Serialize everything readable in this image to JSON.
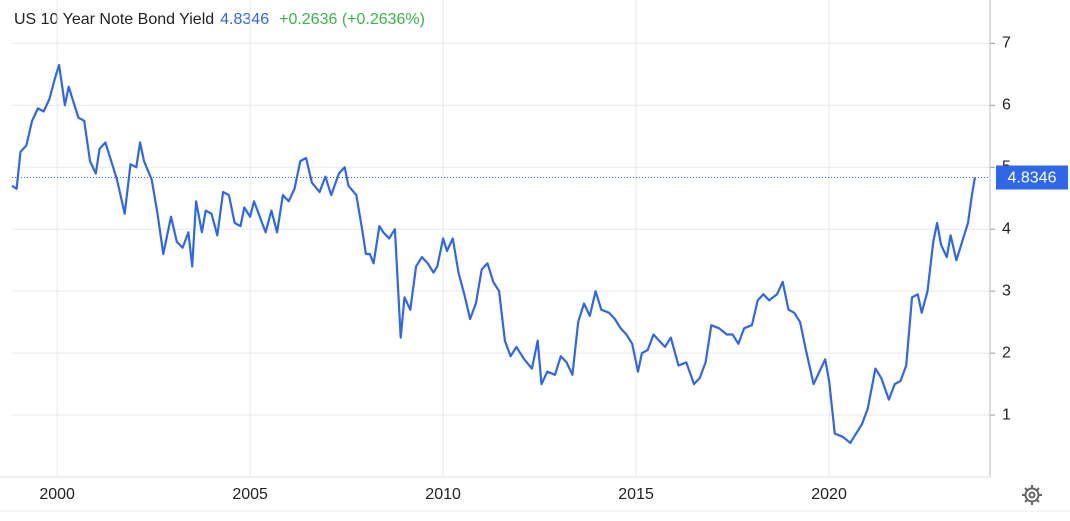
{
  "chart_data": {
    "type": "line",
    "title": "US 10 Year Note Bond Yield",
    "current_value": 4.8346,
    "change_label": "+0.2636 (+0.2636%)",
    "grid": true,
    "xlim": [
      1998.83,
      2024.17
    ],
    "ylim": [
      0,
      7.7
    ],
    "xticks": [
      2000,
      2005,
      2010,
      2015,
      2020
    ],
    "yticks": [
      1,
      2,
      3,
      4,
      5,
      6,
      7
    ],
    "x": [
      1998.83,
      1998.95,
      1999.05,
      1999.2,
      1999.35,
      1999.5,
      1999.65,
      1999.8,
      1999.95,
      2000.05,
      2000.2,
      2000.3,
      2000.45,
      2000.55,
      2000.7,
      2000.85,
      2001.0,
      2001.1,
      2001.25,
      2001.4,
      2001.55,
      2001.75,
      2001.9,
      2002.05,
      2002.15,
      2002.25,
      2002.45,
      2002.6,
      2002.75,
      2002.95,
      2003.1,
      2003.25,
      2003.4,
      2003.5,
      2003.6,
      2003.75,
      2003.85,
      2004.0,
      2004.15,
      2004.3,
      2004.45,
      2004.6,
      2004.75,
      2004.85,
      2005.0,
      2005.1,
      2005.25,
      2005.4,
      2005.55,
      2005.7,
      2005.85,
      2006.0,
      2006.15,
      2006.3,
      2006.45,
      2006.6,
      2006.8,
      2006.95,
      2007.1,
      2007.3,
      2007.45,
      2007.55,
      2007.75,
      2007.9,
      2008.0,
      2008.1,
      2008.2,
      2008.35,
      2008.45,
      2008.6,
      2008.75,
      2008.9,
      2009.0,
      2009.15,
      2009.3,
      2009.45,
      2009.6,
      2009.75,
      2009.85,
      2010.0,
      2010.1,
      2010.25,
      2010.4,
      2010.55,
      2010.7,
      2010.85,
      2011.0,
      2011.15,
      2011.3,
      2011.45,
      2011.6,
      2011.75,
      2011.9,
      2012.1,
      2012.3,
      2012.45,
      2012.55,
      2012.7,
      2012.9,
      2013.05,
      2013.2,
      2013.35,
      2013.5,
      2013.65,
      2013.8,
      2013.95,
      2014.1,
      2014.3,
      2014.45,
      2014.6,
      2014.75,
      2014.9,
      2015.05,
      2015.15,
      2015.3,
      2015.45,
      2015.6,
      2015.75,
      2015.9,
      2016.1,
      2016.3,
      2016.5,
      2016.65,
      2016.8,
      2016.95,
      2017.15,
      2017.35,
      2017.5,
      2017.65,
      2017.8,
      2018.0,
      2018.15,
      2018.3,
      2018.45,
      2018.65,
      2018.8,
      2018.95,
      2019.1,
      2019.25,
      2019.4,
      2019.6,
      2019.75,
      2019.9,
      2020.0,
      2020.15,
      2020.35,
      2020.55,
      2020.7,
      2020.85,
      2021.0,
      2021.2,
      2021.35,
      2021.55,
      2021.7,
      2021.85,
      2022.0,
      2022.15,
      2022.3,
      2022.4,
      2022.55,
      2022.7,
      2022.8,
      2022.9,
      2023.05,
      2023.15,
      2023.3,
      2023.45,
      2023.6,
      2023.7,
      2023.78
    ],
    "series": [
      {
        "name": "US 10 Year Note Bond Yield",
        "color": "#2f67e6",
        "values": [
          4.7,
          4.65,
          5.25,
          5.35,
          5.75,
          5.95,
          5.9,
          6.1,
          6.45,
          6.65,
          6.0,
          6.3,
          6.0,
          5.8,
          5.75,
          5.1,
          4.9,
          5.3,
          5.4,
          5.1,
          4.8,
          4.25,
          5.05,
          5.0,
          5.4,
          5.1,
          4.8,
          4.25,
          3.6,
          4.2,
          3.8,
          3.7,
          3.95,
          3.4,
          4.45,
          3.95,
          4.3,
          4.25,
          3.9,
          4.6,
          4.55,
          4.1,
          4.05,
          4.35,
          4.2,
          4.45,
          4.2,
          3.95,
          4.3,
          3.95,
          4.55,
          4.45,
          4.65,
          5.1,
          5.15,
          4.75,
          4.6,
          4.85,
          4.55,
          4.9,
          5.0,
          4.7,
          4.55,
          4.0,
          3.6,
          3.6,
          3.45,
          4.05,
          3.95,
          3.85,
          4.0,
          2.25,
          2.9,
          2.7,
          3.4,
          3.55,
          3.45,
          3.3,
          3.4,
          3.85,
          3.65,
          3.85,
          3.3,
          2.95,
          2.55,
          2.8,
          3.35,
          3.45,
          3.15,
          3.0,
          2.2,
          1.95,
          2.1,
          1.9,
          1.75,
          2.2,
          1.5,
          1.7,
          1.65,
          1.95,
          1.85,
          1.65,
          2.5,
          2.8,
          2.6,
          3.0,
          2.7,
          2.65,
          2.55,
          2.4,
          2.3,
          2.15,
          1.7,
          2.0,
          2.05,
          2.3,
          2.2,
          2.1,
          2.25,
          1.8,
          1.85,
          1.5,
          1.6,
          1.85,
          2.45,
          2.4,
          2.3,
          2.3,
          2.15,
          2.4,
          2.45,
          2.85,
          2.95,
          2.85,
          2.95,
          3.15,
          2.7,
          2.65,
          2.5,
          2.05,
          1.5,
          1.7,
          1.9,
          1.55,
          0.7,
          0.65,
          0.55,
          0.7,
          0.85,
          1.1,
          1.75,
          1.6,
          1.25,
          1.5,
          1.55,
          1.8,
          2.9,
          2.95,
          2.65,
          3.0,
          3.8,
          4.1,
          3.75,
          3.55,
          3.9,
          3.5,
          3.8,
          4.1,
          4.55,
          4.8346
        ]
      }
    ]
  }
}
